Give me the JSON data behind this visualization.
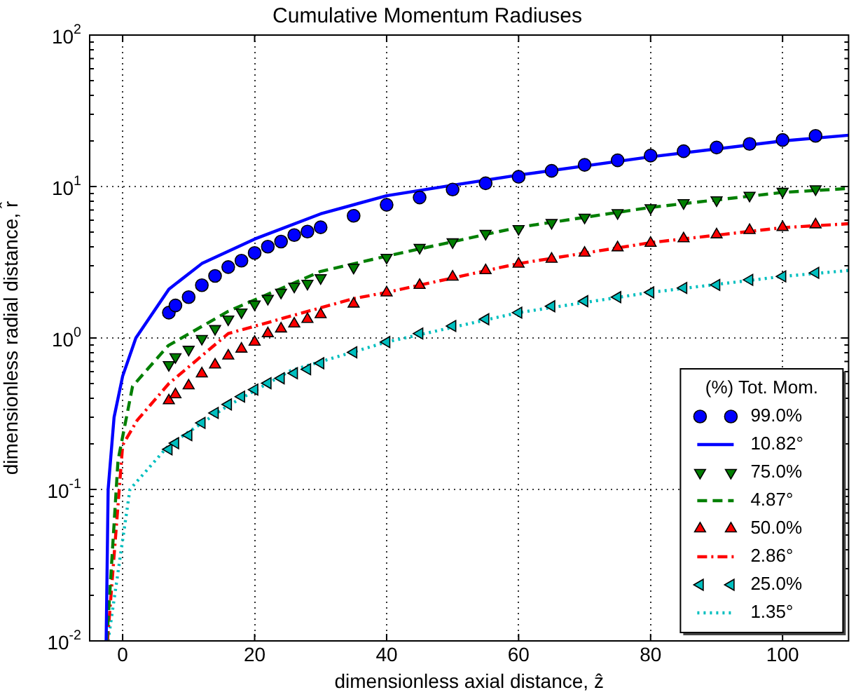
{
  "chart_data": {
    "type": "scatter",
    "title": "Cumulative Momentum Radiuses",
    "xlabel": "dimensionless axial distance, ẑ",
    "ylabel": "dimensionless radial distance, r̂",
    "legend_title": "(%) Tot. Mom.",
    "legend": "bottom right",
    "grid": true,
    "log": "y",
    "xlim": [
      -5,
      110
    ],
    "xticks": [
      0,
      20,
      40,
      60,
      80,
      100
    ],
    "ylim": [
      0.01,
      100
    ],
    "yticks": [
      {
        "value": 0.01,
        "label": "10$^{-2}$"
      },
      {
        "value": 0.02,
        "label": null
      },
      {
        "value": 0.03,
        "label": null
      },
      {
        "value": 0.04,
        "label": null
      },
      {
        "value": 0.05,
        "label": null
      },
      {
        "value": 0.06,
        "label": null
      },
      {
        "value": 0.07,
        "label": null
      },
      {
        "value": 0.08,
        "label": null
      },
      {
        "value": 0.09,
        "label": null
      },
      {
        "value": 0.1,
        "label": "10$^{-1}$"
      },
      {
        "value": 0.2,
        "label": null
      },
      {
        "value": 0.3,
        "label": null
      },
      {
        "value": 0.4,
        "label": null
      },
      {
        "value": 0.5,
        "label": null
      },
      {
        "value": 0.6,
        "label": null
      },
      {
        "value": 0.7,
        "label": null
      },
      {
        "value": 0.8,
        "label": null
      },
      {
        "value": 0.9,
        "label": null
      },
      {
        "value": 1,
        "label": "10$^{0}$"
      },
      {
        "value": 2,
        "label": null
      },
      {
        "value": 3,
        "label": null
      },
      {
        "value": 4,
        "label": null
      },
      {
        "value": 5,
        "label": null
      },
      {
        "value": 6,
        "label": null
      },
      {
        "value": 7,
        "label": null
      },
      {
        "value": 8,
        "label": null
      },
      {
        "value": 9,
        "label": null
      },
      {
        "value": 10,
        "label": "10$^{1}$"
      },
      {
        "value": 20,
        "label": null
      },
      {
        "value": 30,
        "label": null
      },
      {
        "value": 40,
        "label": null
      },
      {
        "value": 50,
        "label": null
      },
      {
        "value": 60,
        "label": null
      },
      {
        "value": 70,
        "label": null
      },
      {
        "value": 80,
        "label": null
      },
      {
        "value": 90,
        "label": null
      },
      {
        "value": 100,
        "label": "10$^{2}$"
      }
    ],
    "series": [
      {
        "name": "99.0%",
        "type": "scatter",
        "marker": "circle",
        "color": "#0000ff",
        "x": [
          7,
          8,
          10,
          12,
          14,
          16,
          18,
          20,
          22,
          24,
          26,
          28,
          30,
          35,
          40,
          45,
          50,
          55,
          60,
          65,
          70,
          75,
          80,
          85,
          90,
          95,
          100,
          105
        ],
        "values": [
          1.47,
          1.64,
          1.86,
          2.23,
          2.57,
          2.94,
          3.24,
          3.64,
          4.01,
          4.33,
          4.78,
          5.04,
          5.38,
          6.41,
          7.57,
          8.47,
          9.55,
          10.5,
          11.6,
          12.7,
          13.9,
          14.9,
          16.0,
          17.1,
          18.1,
          19.1,
          20.3,
          21.6
        ]
      },
      {
        "name": "10.82°",
        "type": "line",
        "line_style": "solid",
        "color": "#0000ff",
        "x": [
          -2.5,
          -2.2,
          -1.3,
          0,
          2,
          7,
          12,
          20,
          30,
          40,
          50,
          60,
          80,
          100,
          110
        ],
        "values": [
          0.01,
          0.1,
          0.3,
          0.56,
          1.0,
          2.1,
          3.1,
          4.5,
          6.6,
          8.7,
          10.2,
          11.9,
          15.7,
          20.0,
          21.8
        ]
      },
      {
        "name": "75.0%",
        "type": "scatter",
        "marker": "triangle-down",
        "color": "#007f00",
        "x": [
          7,
          8,
          10,
          12,
          14,
          16,
          18,
          20,
          22,
          24,
          26,
          28,
          30,
          35,
          40,
          45,
          50,
          55,
          60,
          65,
          70,
          75,
          80,
          85,
          90,
          95,
          100,
          105
        ],
        "values": [
          0.665,
          0.75,
          0.84,
          0.99,
          1.15,
          1.33,
          1.48,
          1.67,
          1.82,
          2.0,
          2.19,
          2.29,
          2.49,
          2.92,
          3.4,
          3.95,
          4.3,
          4.89,
          5.26,
          5.77,
          6.26,
          6.7,
          7.23,
          7.8,
          8.14,
          8.73,
          9.27,
          9.63
        ]
      },
      {
        "name": "4.87°",
        "type": "line",
        "line_style": "dashed",
        "color": "#007f00",
        "x": [
          -2.4,
          -0.7,
          1.5,
          6.9,
          16,
          30,
          40,
          60,
          80,
          100,
          110
        ],
        "values": [
          0.01,
          0.156,
          0.48,
          0.89,
          1.5,
          2.75,
          3.47,
          5.38,
          7.28,
          9.14,
          9.7
        ]
      },
      {
        "name": "50.0%",
        "type": "scatter",
        "marker": "triangle",
        "color": "#ff0000",
        "x": [
          7,
          8,
          10,
          12,
          14,
          16,
          18,
          20,
          22,
          24,
          26,
          28,
          30,
          35,
          40,
          45,
          50,
          55,
          60,
          65,
          70,
          75,
          80,
          85,
          90,
          95,
          100,
          105
        ],
        "values": [
          0.386,
          0.423,
          0.484,
          0.581,
          0.665,
          0.762,
          0.847,
          0.94,
          1.07,
          1.15,
          1.24,
          1.33,
          1.43,
          1.68,
          1.99,
          2.23,
          2.53,
          2.79,
          3.08,
          3.32,
          3.64,
          3.95,
          4.23,
          4.53,
          4.81,
          5.14,
          5.38,
          5.6
        ]
      },
      {
        "name": "2.86°",
        "type": "line",
        "line_style": "dashdot",
        "color": "#ff0000",
        "x": [
          -2.3,
          0,
          2.2,
          7,
          16,
          35,
          40,
          60,
          80,
          100,
          110
        ],
        "values": [
          0.01,
          0.196,
          0.286,
          0.5,
          1.07,
          1.82,
          2.0,
          3.1,
          4.26,
          5.35,
          5.68
        ]
      },
      {
        "name": "25.0%",
        "type": "scatter",
        "marker": "triangle-left",
        "color": "#00bfbf",
        "x": [
          7,
          8,
          10,
          12,
          14,
          16,
          18,
          20,
          22,
          24,
          26,
          28,
          30,
          35,
          40,
          45,
          50,
          55,
          60,
          65,
          70,
          75,
          80,
          85,
          90,
          95,
          100,
          105
        ],
        "values": [
          0.184,
          0.202,
          0.228,
          0.275,
          0.32,
          0.364,
          0.41,
          0.456,
          0.503,
          0.542,
          0.585,
          0.621,
          0.681,
          0.804,
          0.94,
          1.07,
          1.2,
          1.33,
          1.47,
          1.62,
          1.75,
          1.86,
          2.0,
          2.14,
          2.24,
          2.42,
          2.55,
          2.69
        ]
      },
      {
        "name": "1.35°",
        "type": "line",
        "line_style": "dotted",
        "color": "#00bfbf",
        "x": [
          -2.2,
          1.1,
          7,
          16,
          25.5,
          40,
          60,
          80,
          100,
          110
        ],
        "values": [
          0.01,
          0.1,
          0.196,
          0.358,
          0.61,
          0.94,
          1.47,
          2.0,
          2.55,
          2.79
        ]
      }
    ]
  }
}
